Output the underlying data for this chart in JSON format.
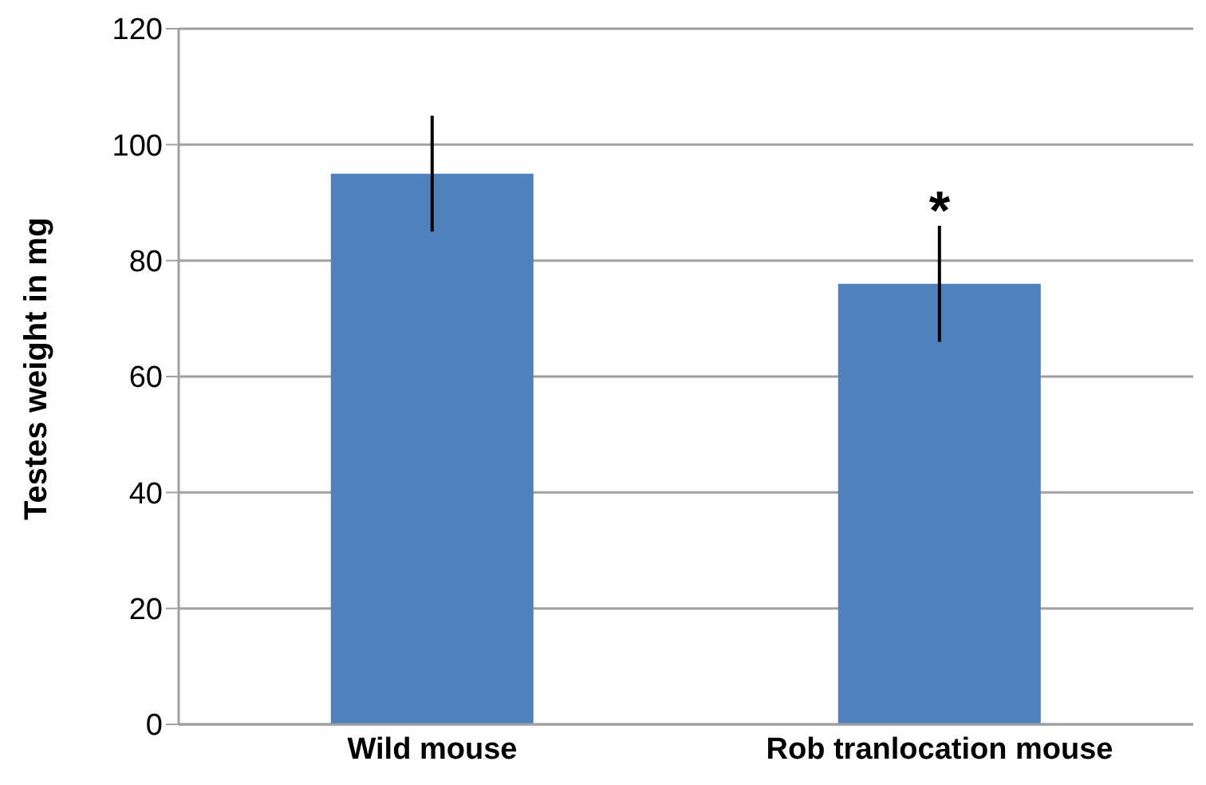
{
  "chart_data": {
    "type": "bar",
    "ylabel": "Testes weight in mg",
    "categories": [
      "Wild mouse",
      "Rob tranlocation mouse"
    ],
    "values": [
      95,
      76
    ],
    "errors": [
      10,
      10
    ],
    "color": "#4f81bd",
    "ylim": [
      0,
      120
    ],
    "yticks": [
      0,
      20,
      40,
      60,
      80,
      100,
      120
    ],
    "grid": "y",
    "annotations": [
      {
        "text": "*",
        "x": "Rob tranlocation mouse",
        "y": 86
      }
    ]
  }
}
